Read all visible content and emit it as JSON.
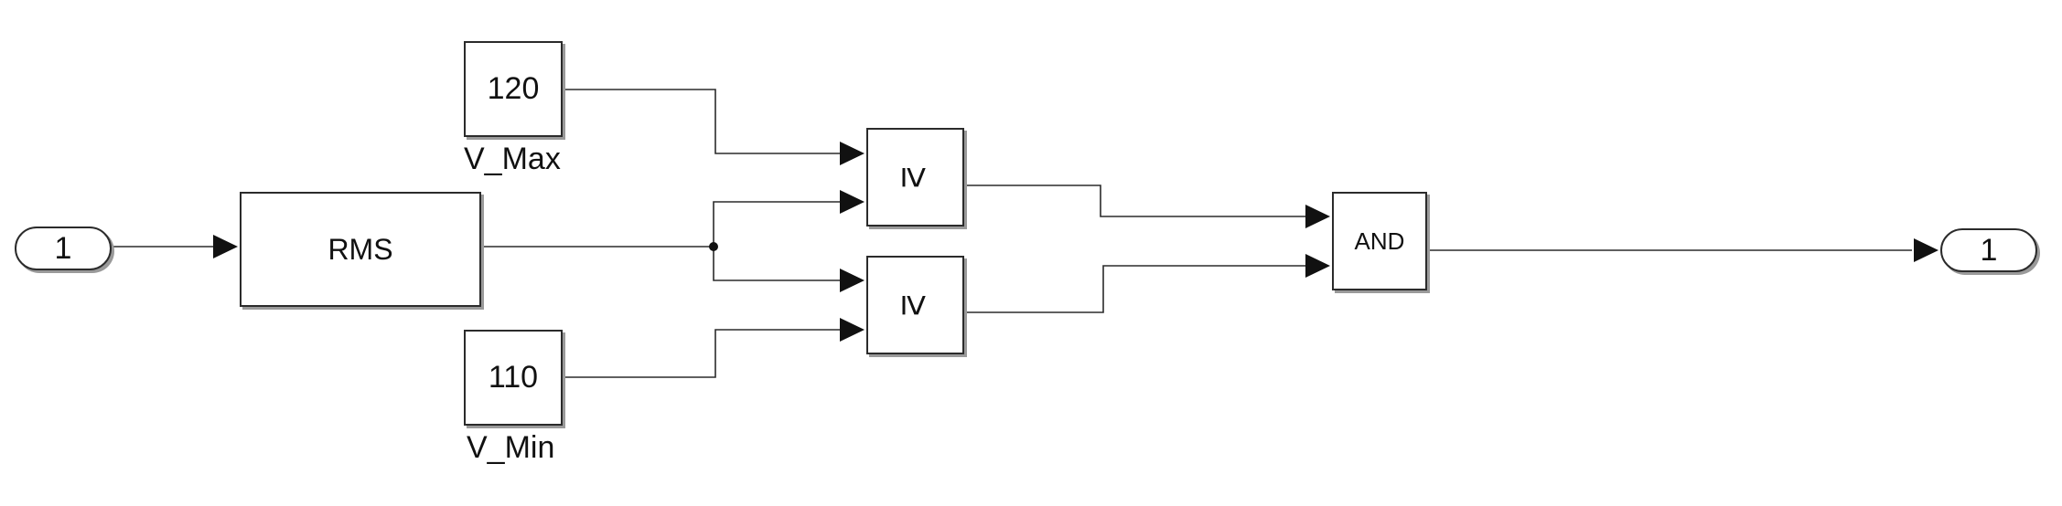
{
  "inport": {
    "label": "1"
  },
  "rms": {
    "label": "RMS"
  },
  "v_max": {
    "value": "120",
    "caption": "V_Max"
  },
  "v_min": {
    "value": "110",
    "caption": "V_Min"
  },
  "compare_upper": {
    "symbol": "≥"
  },
  "compare_lower": {
    "symbol": "≥"
  },
  "logic": {
    "label": "AND"
  },
  "outport": {
    "label": "1"
  },
  "colors": {
    "line": "#2b2b2b",
    "shadow": "#9a9a9a",
    "background": "#ffffff"
  }
}
